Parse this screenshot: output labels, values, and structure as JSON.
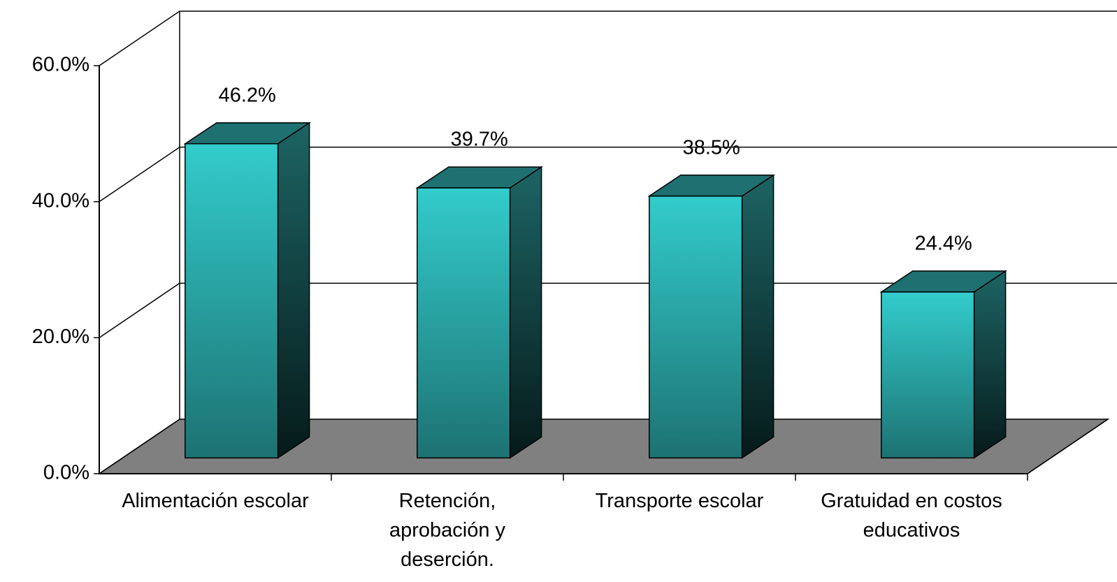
{
  "chart_data": {
    "type": "bar3d",
    "categories": [
      "Alimentación escolar",
      "Retención,\naprobación y\ndeserción.",
      "Transporte escolar",
      "Gratuidad en costos\neducativos"
    ],
    "values": [
      46.2,
      39.7,
      38.5,
      24.4
    ],
    "value_labels": [
      "46.2%",
      "39.7%",
      "38.5%",
      "24.4%"
    ],
    "color": "#33cccc",
    "ylim": [
      0,
      60
    ],
    "yticks": [
      {
        "value": 0,
        "label": "0.0%"
      },
      {
        "value": 20,
        "label": "20.0%"
      },
      {
        "value": 40,
        "label": "40.0%"
      },
      {
        "value": 60,
        "label": "60.0%"
      }
    ],
    "grid": true
  }
}
